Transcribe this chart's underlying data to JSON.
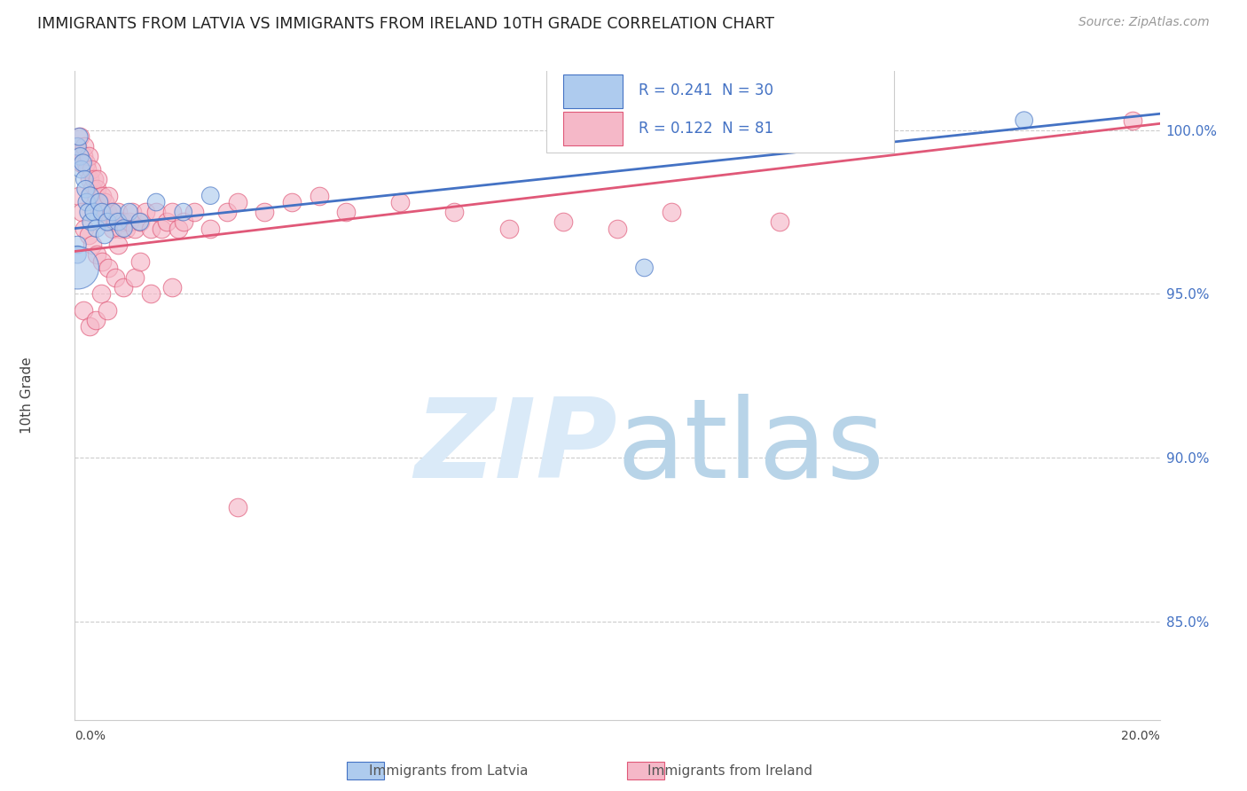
{
  "title": "IMMIGRANTS FROM LATVIA VS IMMIGRANTS FROM IRELAND 10TH GRADE CORRELATION CHART",
  "source": "Source: ZipAtlas.com",
  "ylabel": "10th Grade",
  "xlim": [
    0.0,
    20.0
  ],
  "ylim": [
    82.0,
    101.8
  ],
  "yticks": [
    85.0,
    90.0,
    95.0,
    100.0
  ],
  "ytick_labels": [
    "85.0%",
    "90.0%",
    "95.0%",
    "100.0%"
  ],
  "latvia_R": 0.241,
  "latvia_N": 30,
  "ireland_R": 0.122,
  "ireland_N": 81,
  "latvia_color": "#aecbee",
  "ireland_color": "#f5b8c8",
  "latvia_line_color": "#4472c4",
  "ireland_line_color": "#e05878",
  "watermark_color": "#daeaf8",
  "latvia_line_y0": 97.0,
  "latvia_line_y1": 100.5,
  "ireland_line_y0": 96.3,
  "ireland_line_y1": 100.2,
  "latvia_points_x": [
    0.05,
    0.08,
    0.1,
    0.12,
    0.15,
    0.18,
    0.2,
    0.22,
    0.25,
    0.28,
    0.3,
    0.35,
    0.4,
    0.45,
    0.5,
    0.55,
    0.6,
    0.7,
    0.8,
    0.9,
    1.0,
    1.2,
    1.5,
    2.0,
    2.5,
    0.05,
    0.05,
    0.05,
    10.5,
    17.5
  ],
  "latvia_points_y": [
    99.5,
    99.8,
    99.2,
    98.8,
    99.0,
    98.5,
    98.2,
    97.8,
    97.5,
    98.0,
    97.2,
    97.5,
    97.0,
    97.8,
    97.5,
    96.8,
    97.2,
    97.5,
    97.2,
    97.0,
    97.5,
    97.2,
    97.8,
    97.5,
    98.0,
    96.5,
    96.2,
    95.8,
    95.8,
    100.3
  ],
  "latvia_sizes": [
    200,
    200,
    200,
    200,
    200,
    200,
    200,
    200,
    200,
    200,
    200,
    200,
    200,
    200,
    200,
    200,
    200,
    200,
    200,
    200,
    200,
    200,
    200,
    200,
    200,
    200,
    200,
    1200,
    200,
    200
  ],
  "ireland_points_x": [
    0.05,
    0.08,
    0.1,
    0.12,
    0.15,
    0.18,
    0.2,
    0.22,
    0.25,
    0.28,
    0.3,
    0.32,
    0.35,
    0.38,
    0.4,
    0.42,
    0.45,
    0.48,
    0.5,
    0.52,
    0.55,
    0.58,
    0.6,
    0.62,
    0.65,
    0.68,
    0.7,
    0.75,
    0.8,
    0.85,
    0.9,
    0.95,
    1.0,
    1.05,
    1.1,
    1.2,
    1.3,
    1.4,
    1.5,
    1.6,
    1.7,
    1.8,
    1.9,
    2.0,
    2.2,
    2.5,
    2.8,
    3.0,
    3.5,
    4.0,
    4.5,
    5.0,
    6.0,
    7.0,
    8.0,
    9.0,
    10.0,
    11.0,
    13.0,
    19.5,
    0.08,
    0.12,
    0.18,
    0.25,
    0.32,
    0.4,
    0.5,
    0.62,
    0.75,
    0.9,
    1.1,
    1.4,
    1.8,
    0.15,
    0.28,
    0.38,
    0.48,
    0.6,
    0.8,
    1.2,
    3.0
  ],
  "ireland_points_y": [
    99.5,
    99.2,
    99.8,
    99.0,
    99.2,
    99.5,
    99.0,
    98.8,
    99.2,
    98.5,
    98.8,
    98.2,
    98.5,
    98.0,
    98.2,
    98.5,
    97.8,
    97.5,
    98.0,
    97.5,
    97.8,
    97.2,
    97.5,
    98.0,
    97.2,
    97.5,
    97.0,
    97.2,
    97.5,
    97.0,
    97.2,
    97.0,
    97.2,
    97.5,
    97.0,
    97.2,
    97.5,
    97.0,
    97.5,
    97.0,
    97.2,
    97.5,
    97.0,
    97.2,
    97.5,
    97.0,
    97.5,
    97.8,
    97.5,
    97.8,
    98.0,
    97.5,
    97.8,
    97.5,
    97.0,
    97.2,
    97.0,
    97.5,
    97.2,
    100.3,
    98.0,
    97.5,
    97.0,
    96.8,
    96.5,
    96.2,
    96.0,
    95.8,
    95.5,
    95.2,
    95.5,
    95.0,
    95.2,
    94.5,
    94.0,
    94.2,
    95.0,
    94.5,
    96.5,
    96.0,
    88.5
  ]
}
